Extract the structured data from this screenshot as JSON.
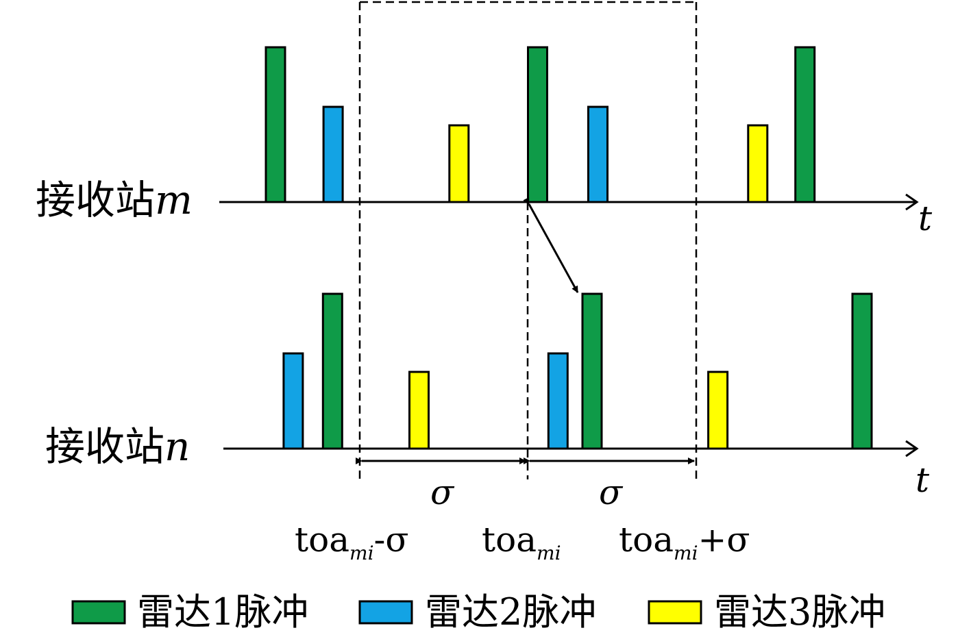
{
  "stations": {
    "m": {
      "label": "接收站",
      "var": "m",
      "axis_var": "t"
    },
    "n": {
      "label": "接收站",
      "var": "n",
      "axis_var": "t"
    }
  },
  "windows": {
    "sigma_left": "σ",
    "sigma_right": "σ",
    "lower_label": {
      "base": "toa",
      "sub": "mi",
      "suffix": "-σ"
    },
    "mid_label": {
      "base": "toa",
      "sub": "mi"
    },
    "upper_label": {
      "base": "toa",
      "sub": "mi",
      "suffix": "+σ"
    }
  },
  "legend": [
    {
      "label": "雷达1脉冲",
      "color": "#0f9b48"
    },
    {
      "label": "雷达2脉冲",
      "color": "#13a3e4"
    },
    {
      "label": "雷达3脉冲",
      "color": "#ffff00"
    }
  ],
  "pulses": {
    "m": [
      {
        "radar": 1,
        "time": 0.0,
        "level": "high"
      },
      {
        "radar": 2,
        "time": 0.22,
        "level": "mid"
      },
      {
        "radar": 3,
        "time": 0.7,
        "level": "low"
      },
      {
        "radar": 1,
        "time": 1.0,
        "level": "high"
      },
      {
        "radar": 2,
        "time": 1.23,
        "level": "mid"
      },
      {
        "radar": 3,
        "time": 1.84,
        "level": "low"
      },
      {
        "radar": 1,
        "time": 2.02,
        "level": "high"
      }
    ],
    "n": [
      {
        "radar": 2,
        "time": 0.06,
        "level": "mid"
      },
      {
        "radar": 1,
        "time": 0.21,
        "level": "high"
      },
      {
        "radar": 3,
        "time": 0.54,
        "level": "low"
      },
      {
        "radar": 2,
        "time": 1.07,
        "level": "mid"
      },
      {
        "radar": 1,
        "time": 1.2,
        "level": "high"
      },
      {
        "radar": 3,
        "time": 1.68,
        "level": "low"
      },
      {
        "radar": 1,
        "time": 2.23,
        "level": "high"
      }
    ]
  }
}
